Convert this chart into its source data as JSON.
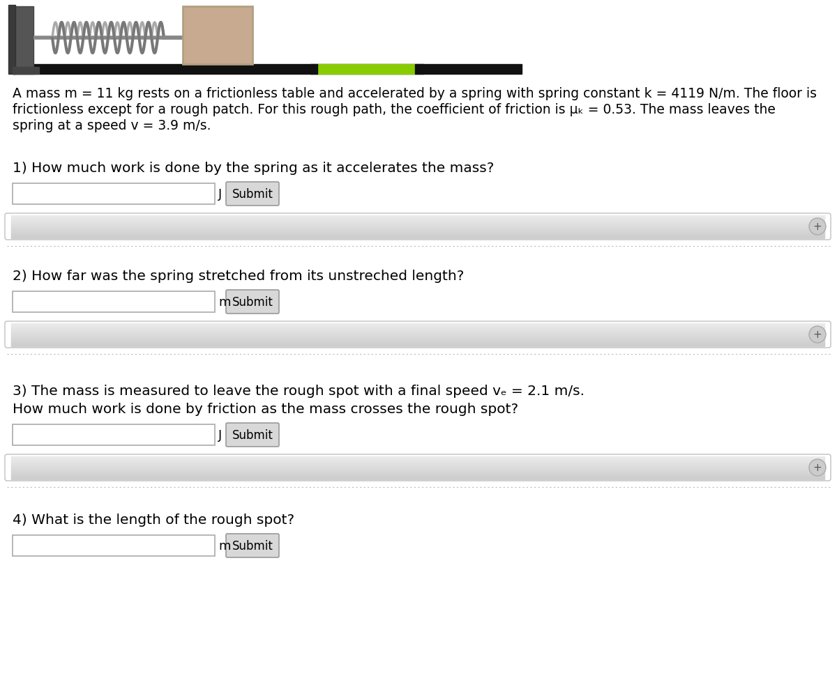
{
  "bg_color": "#ffffff",
  "desc_line1": "A mass m = 11 kg rests on a frictionless table and accelerated by a spring with spring constant k = 4119 N/m. The floor is",
  "desc_line2": "frictionless except for a rough patch. For this rough path, the coefficient of friction is μₖ = 0.53. The mass leaves the",
  "desc_line3": "spring at a speed v = 3.9 m/s.",
  "q1_label": "1) How much work is done by the spring as it accelerates the mass?",
  "q1_unit": "J",
  "q2_label": "2) How far was the spring stretched from its unstreched length?",
  "q2_unit": "m",
  "q3_label1": "3) The mass is measured to leave the rough spot with a final speed vₑ = 2.1 m/s.",
  "q3_label2": "How much work is done by friction as the mass crosses the rough spot?",
  "q3_unit": "J",
  "q4_label": "4) What is the length of the rough spot?",
  "q4_unit": "m",
  "submit_text": "Submit",
  "track_color": "#111111",
  "rough_color": "#88cc00",
  "mass_color": "#c8aa90",
  "wall_color_dark": "#444444",
  "wall_color_light": "#666666",
  "spring_color": "#909090",
  "feedback_bar_light": "#eeeeee",
  "feedback_bar_dark": "#cccccc",
  "dotted_color": "#bbbbbb",
  "text_font_size": 13.5,
  "q_font_size": 14.5
}
